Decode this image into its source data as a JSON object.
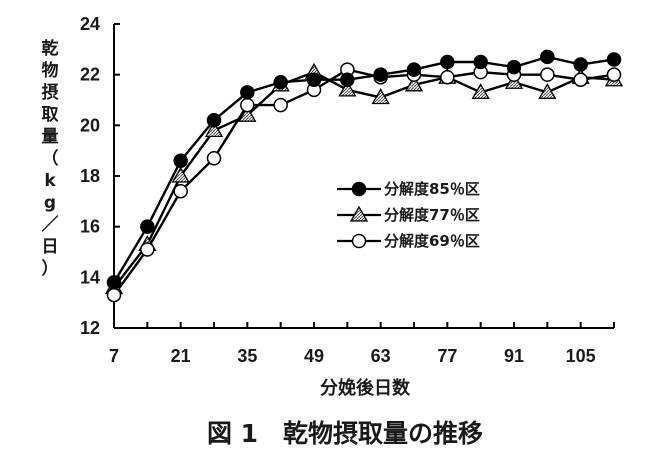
{
  "chart_data": {
    "type": "line",
    "title": "",
    "xlabel": "分娩後日数",
    "ylabel": "乾物摂取量（kg／日）",
    "caption": "図 1　乾物摂取量の推移",
    "x": [
      7,
      14,
      21,
      28,
      35,
      42,
      49,
      56,
      63,
      70,
      77,
      84,
      91,
      98,
      105,
      112
    ],
    "xticks": [
      "7",
      "21",
      "35",
      "49",
      "63",
      "77",
      "91",
      "105"
    ],
    "xtick_values": [
      7,
      21,
      35,
      49,
      63,
      77,
      91,
      105
    ],
    "yticks": [
      "12",
      "14",
      "16",
      "18",
      "20",
      "22",
      "24"
    ],
    "ytick_values": [
      12,
      14,
      16,
      18,
      20,
      22,
      24
    ],
    "xlim": [
      7,
      112
    ],
    "ylim": [
      12,
      24
    ],
    "grid": false,
    "legend_position": "center-right",
    "series": [
      {
        "name": "分解度85％区",
        "marker": "filled-circle",
        "color": "#000000",
        "values": [
          13.8,
          16.0,
          18.6,
          20.2,
          21.3,
          21.7,
          21.8,
          21.8,
          22.0,
          22.2,
          22.5,
          22.5,
          22.3,
          22.7,
          22.4,
          22.6
        ]
      },
      {
        "name": "分解度77％区",
        "marker": "hatched-triangle",
        "color": "#000000",
        "values": [
          13.6,
          15.3,
          18.0,
          19.8,
          20.4,
          21.6,
          22.1,
          21.4,
          21.1,
          21.6,
          21.9,
          21.3,
          21.7,
          21.3,
          21.9,
          21.8
        ]
      },
      {
        "name": "分解度69％区",
        "marker": "open-circle",
        "color": "#000000",
        "values": [
          13.3,
          15.1,
          17.4,
          18.7,
          20.8,
          20.8,
          21.4,
          22.2,
          21.9,
          22.0,
          21.9,
          22.1,
          22.0,
          22.0,
          21.8,
          22.0
        ]
      }
    ]
  }
}
